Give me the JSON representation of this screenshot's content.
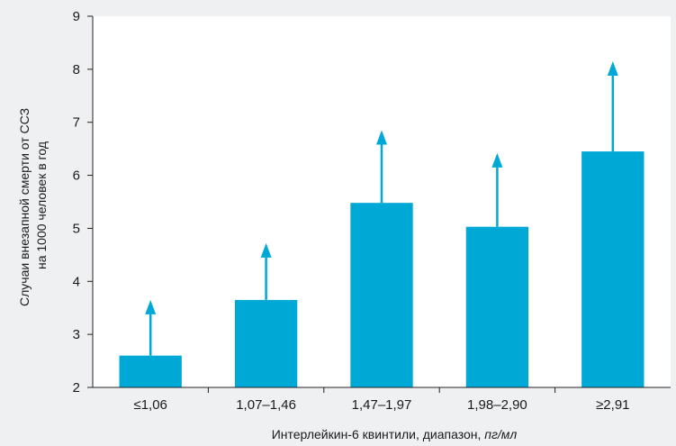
{
  "chart_data": {
    "type": "bar",
    "title": "",
    "categories": [
      "≤1,06",
      "1,07–1,46",
      "1,47–1,97",
      "1,98–2,90",
      "≥2,91"
    ],
    "values": [
      2.6,
      3.65,
      5.48,
      5.03,
      6.45
    ],
    "error_upper": [
      3.65,
      4.72,
      6.85,
      6.42,
      8.15
    ],
    "ylim": [
      2,
      9
    ],
    "yticks": [
      "2",
      "3",
      "4",
      "5",
      "6",
      "7",
      "8",
      "9"
    ],
    "xlabel": {
      "main": "Интерлейкин-6 квинтили, диапазон, ",
      "unit": "пг/мл"
    },
    "ylabel": {
      "line1": "Случаи внезапной смерти от ССЗ",
      "line2": "на 1000 человек в год"
    },
    "colors": {
      "bar": "#00a8d6",
      "background": "#eef0f1",
      "plot_bg": "#ffffff",
      "axis": "#222222"
    },
    "grid": false
  }
}
